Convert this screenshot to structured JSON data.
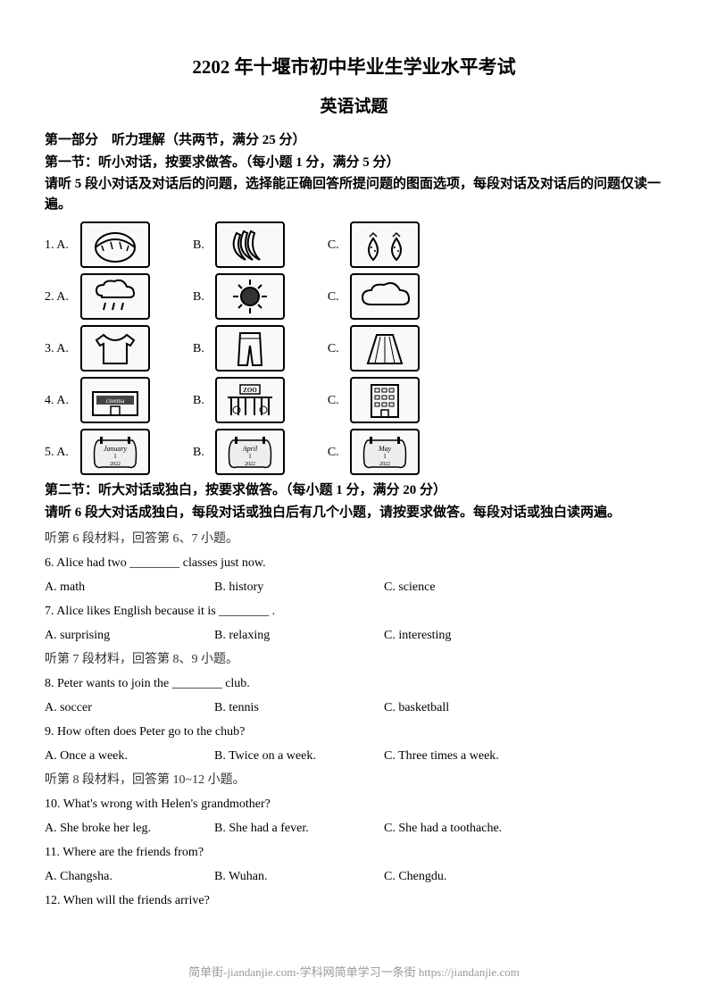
{
  "title_main": "2202 年十堰市初中毕业生学业水平考试",
  "title_sub": "英语试题",
  "part1_heading": "第一部分　听力理解（共两节，满分 25 分）",
  "sec1_heading": "第一节：听小对话，按要求做答。（每小题 1 分，满分 5 分）",
  "sec1_instruction": "请听 5 段小对话及对话后的问题，选择能正确回答所提问题的图面选项，每段对话及对话后的问题仅读一遍。",
  "picture_questions": [
    {
      "n": "1.",
      "a": "A.",
      "b": "B.",
      "c": "C.",
      "icons": [
        "watermelon",
        "bananas",
        "strawberries"
      ]
    },
    {
      "n": "2.",
      "a": "A.",
      "b": "B.",
      "c": "C.",
      "icons": [
        "rain-cloud",
        "sun",
        "cloud"
      ]
    },
    {
      "n": "3.",
      "a": "A.",
      "b": "B.",
      "c": "C.",
      "icons": [
        "tshirt",
        "pants",
        "skirt"
      ]
    },
    {
      "n": "4.",
      "a": "A.",
      "b": "B.",
      "c": "C.",
      "icons": [
        "cinema",
        "zoo",
        "building"
      ]
    },
    {
      "n": "5.",
      "a": "A.",
      "b": "B.",
      "c": "C.",
      "icons": [
        "calendar-jan",
        "calendar-apr",
        "calendar-may"
      ]
    }
  ],
  "cal_labels": {
    "jan": "January",
    "apr": "April",
    "may": "May",
    "year": "2022",
    "day": "1"
  },
  "zoo_label": "ZOO",
  "cinema_label": "cinema",
  "sec2_heading": "第二节：听大对话或独白，按要求做答。（每小题 1 分，满分 20 分）",
  "sec2_instruction": "请听 6 段大对话成独白，每段对话或独白后有几个小题，请按要求做答。每段对话或独白读两遍。",
  "materials": [
    {
      "note": "听第 6 段材料，回答第 6、7 小题。",
      "questions": [
        {
          "q": "6. Alice had two ________ classes just now.",
          "opts": [
            "A. math",
            "B. history",
            "C. science"
          ]
        },
        {
          "q": "7. Alice likes English because it is ________ .",
          "opts": [
            "A. surprising",
            "B. relaxing",
            "C. interesting"
          ]
        }
      ]
    },
    {
      "note": "听第 7 段材料，回答第 8、9 小题。",
      "questions": [
        {
          "q": "8. Peter wants to join the ________ club.",
          "opts": [
            "A. soccer",
            "B. tennis",
            "C. basketball"
          ]
        },
        {
          "q": "9. How often does Peter go to the chub?",
          "opts": [
            "A. Once a week.",
            "B. Twice on a week.",
            "C. Three times a week."
          ]
        }
      ]
    },
    {
      "note": "听第 8 段材料，回答第 10~12 小题。",
      "questions": [
        {
          "q": "10. What's wrong with Helen's grandmother?",
          "opts": [
            "A. She broke her leg.",
            "B. She had a fever.",
            "C. She had a toothache."
          ]
        },
        {
          "q": "11. Where are the friends from?",
          "opts": [
            "A. Changsha.",
            "B. Wuhan.",
            "C. Chengdu."
          ]
        },
        {
          "q": "12. When will the friends arrive?",
          "opts": []
        }
      ]
    }
  ],
  "footer": "简单街-jiandanjie.com-学科网简单学习一条街 https://jiandanjie.com"
}
